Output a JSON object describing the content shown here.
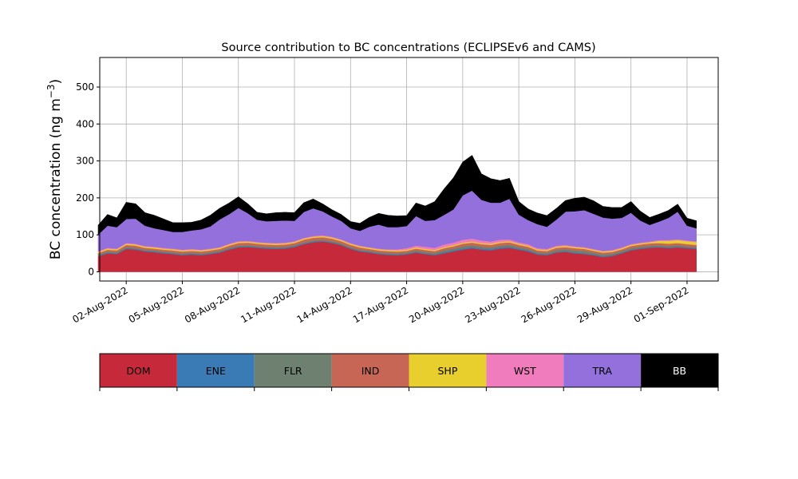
{
  "chart_data": {
    "type": "area",
    "stacked": true,
    "title": "Source contribution to BC concentrations (ECLIPSEv6 and CAMS)",
    "ylabel_text": "BC concentration (ng m",
    "ylabel_exp": "−3",
    "ylabel_close": ")",
    "xlabel": "",
    "ylim": [
      -25,
      580
    ],
    "yticks": [
      0,
      100,
      200,
      300,
      400,
      500
    ],
    "xlim": [
      "2022-07-31T14:00",
      "2022-09-02T16:00"
    ],
    "xticks": [
      {
        "date": "2022-08-02",
        "label": "02-Aug-2022"
      },
      {
        "date": "2022-08-05",
        "label": "05-Aug-2022"
      },
      {
        "date": "2022-08-08",
        "label": "08-Aug-2022"
      },
      {
        "date": "2022-08-11",
        "label": "11-Aug-2022"
      },
      {
        "date": "2022-08-14",
        "label": "14-Aug-2022"
      },
      {
        "date": "2022-08-17",
        "label": "17-Aug-2022"
      },
      {
        "date": "2022-08-20",
        "label": "20-Aug-2022"
      },
      {
        "date": "2022-08-23",
        "label": "23-Aug-2022"
      },
      {
        "date": "2022-08-26",
        "label": "26-Aug-2022"
      },
      {
        "date": "2022-08-29",
        "label": "29-Aug-2022"
      },
      {
        "date": "2022-09-01",
        "label": "01-Sep-2022"
      }
    ],
    "grid": true,
    "legend_placement": "bottom colorbar",
    "x": [
      "2022-07-31T12:00",
      "2022-08-01T00:00",
      "2022-08-01T12:00",
      "2022-08-02T00:00",
      "2022-08-02T12:00",
      "2022-08-03T00:00",
      "2022-08-03T12:00",
      "2022-08-04T00:00",
      "2022-08-04T12:00",
      "2022-08-05T00:00",
      "2022-08-05T12:00",
      "2022-08-06T00:00",
      "2022-08-06T12:00",
      "2022-08-07T00:00",
      "2022-08-07T12:00",
      "2022-08-08T00:00",
      "2022-08-08T12:00",
      "2022-08-09T00:00",
      "2022-08-09T12:00",
      "2022-08-10T00:00",
      "2022-08-10T12:00",
      "2022-08-11T00:00",
      "2022-08-11T12:00",
      "2022-08-12T00:00",
      "2022-08-12T12:00",
      "2022-08-13T00:00",
      "2022-08-13T12:00",
      "2022-08-14T00:00",
      "2022-08-14T12:00",
      "2022-08-15T00:00",
      "2022-08-15T12:00",
      "2022-08-16T00:00",
      "2022-08-16T12:00",
      "2022-08-17T00:00",
      "2022-08-17T12:00",
      "2022-08-18T00:00",
      "2022-08-18T12:00",
      "2022-08-19T00:00",
      "2022-08-19T12:00",
      "2022-08-20T00:00",
      "2022-08-20T12:00",
      "2022-08-21T00:00",
      "2022-08-21T12:00",
      "2022-08-22T00:00",
      "2022-08-22T12:00",
      "2022-08-23T00:00",
      "2022-08-23T12:00",
      "2022-08-24T00:00",
      "2022-08-24T12:00",
      "2022-08-25T00:00",
      "2022-08-25T12:00",
      "2022-08-26T00:00",
      "2022-08-26T12:00",
      "2022-08-27T00:00",
      "2022-08-27T12:00",
      "2022-08-28T00:00",
      "2022-08-28T12:00",
      "2022-08-29T00:00",
      "2022-08-29T12:00",
      "2022-08-30T00:00",
      "2022-08-30T12:00",
      "2022-08-31T00:00",
      "2022-08-31T12:00",
      "2022-09-01T00:00",
      "2022-09-01T12:00"
    ],
    "series": [
      {
        "name": "DOM",
        "color": "#c62a3a",
        "text_color": "#000000",
        "values": [
          42,
          50,
          48,
          62,
          60,
          55,
          53,
          50,
          48,
          45,
          47,
          45,
          48,
          52,
          60,
          66,
          67,
          65,
          63,
          62,
          63,
          67,
          75,
          80,
          82,
          78,
          72,
          62,
          55,
          52,
          48,
          46,
          45,
          47,
          52,
          48,
          45,
          50,
          55,
          60,
          64,
          60,
          58,
          63,
          65,
          60,
          55,
          47,
          45,
          52,
          54,
          50,
          48,
          45,
          40,
          43,
          50,
          58,
          62,
          65,
          66,
          64,
          66,
          64,
          62
        ]
      },
      {
        "name": "ENE",
        "color": "#3a7ab5",
        "text_color": "#000000",
        "values": [
          2,
          2,
          2,
          2,
          2,
          2,
          2,
          2,
          2,
          2,
          2,
          2,
          2,
          2,
          2,
          2,
          2,
          2,
          2,
          2,
          2,
          2,
          2,
          2,
          2,
          2,
          2,
          2,
          2,
          2,
          2,
          2,
          2,
          2,
          2,
          2,
          2,
          3,
          3,
          3,
          3,
          3,
          3,
          3,
          3,
          3,
          3,
          2,
          2,
          2,
          2,
          2,
          2,
          2,
          2,
          2,
          2,
          2,
          2,
          2,
          2,
          2,
          2,
          2,
          2
        ]
      },
      {
        "name": "FLR",
        "color": "#6e8170",
        "text_color": "#000000",
        "values": [
          3,
          3,
          3,
          3,
          3,
          3,
          3,
          3,
          3,
          3,
          3,
          3,
          3,
          3,
          3,
          3,
          3,
          3,
          3,
          3,
          3,
          3,
          3,
          3,
          3,
          3,
          3,
          3,
          3,
          3,
          3,
          3,
          3,
          3,
          4,
          4,
          4,
          5,
          5,
          6,
          5,
          5,
          5,
          5,
          5,
          4,
          4,
          4,
          4,
          5,
          5,
          6,
          6,
          5,
          5,
          4,
          4,
          4,
          4,
          4,
          4,
          4,
          4,
          3,
          3
        ]
      },
      {
        "name": "IND",
        "color": "#c86656",
        "text_color": "#000000",
        "values": [
          4,
          5,
          5,
          6,
          6,
          5,
          5,
          5,
          5,
          5,
          5,
          5,
          5,
          5,
          6,
          7,
          7,
          6,
          6,
          6,
          6,
          6,
          7,
          7,
          7,
          7,
          6,
          6,
          6,
          5,
          5,
          5,
          5,
          5,
          5,
          5,
          5,
          6,
          6,
          7,
          7,
          7,
          7,
          7,
          7,
          6,
          6,
          5,
          5,
          6,
          6,
          6,
          6,
          5,
          5,
          5,
          5,
          6,
          6,
          6,
          6,
          6,
          6,
          6,
          6
        ]
      },
      {
        "name": "SHP",
        "color": "#e8cf2e",
        "text_color": "#000000",
        "values": [
          3,
          3,
          3,
          3,
          3,
          3,
          3,
          3,
          3,
          3,
          3,
          3,
          3,
          3,
          3,
          3,
          3,
          3,
          3,
          3,
          3,
          3,
          3,
          3,
          3,
          3,
          3,
          3,
          3,
          3,
          3,
          3,
          3,
          3,
          3,
          3,
          3,
          3,
          3,
          3,
          3,
          3,
          3,
          3,
          3,
          3,
          3,
          3,
          3,
          3,
          3,
          3,
          3,
          3,
          3,
          3,
          3,
          3,
          3,
          3,
          6,
          8,
          8,
          8,
          8
        ]
      },
      {
        "name": "WST",
        "color": "#f07cbd",
        "text_color": "#000000",
        "values": [
          2,
          2,
          2,
          2,
          2,
          2,
          2,
          2,
          2,
          2,
          2,
          2,
          2,
          2,
          2,
          2,
          2,
          2,
          2,
          2,
          2,
          2,
          2,
          2,
          2,
          2,
          2,
          2,
          2,
          2,
          2,
          2,
          3,
          4,
          5,
          6,
          6,
          7,
          7,
          8,
          8,
          7,
          6,
          6,
          5,
          4,
          4,
          3,
          3,
          3,
          3,
          2,
          2,
          2,
          2,
          2,
          2,
          2,
          2,
          2,
          2,
          2,
          2,
          2,
          2
        ]
      },
      {
        "name": "TRA",
        "color": "#9370db",
        "text_color": "#000000",
        "values": [
          45,
          60,
          58,
          65,
          68,
          55,
          50,
          48,
          45,
          48,
          50,
          55,
          60,
          75,
          80,
          90,
          75,
          60,
          58,
          60,
          60,
          55,
          70,
          75,
          65,
          55,
          50,
          40,
          40,
          55,
          65,
          60,
          60,
          60,
          80,
          70,
          75,
          80,
          90,
          120,
          130,
          110,
          105,
          100,
          110,
          75,
          65,
          65,
          60,
          70,
          90,
          95,
          100,
          95,
          90,
          85,
          80,
          85,
          60,
          45,
          50,
          60,
          75,
          40,
          35
        ]
      },
      {
        "name": "BB",
        "color": "#000000",
        "text_color": "#ffffff",
        "values": [
          25,
          30,
          25,
          45,
          40,
          35,
          35,
          30,
          25,
          25,
          22,
          25,
          30,
          30,
          30,
          30,
          25,
          20,
          20,
          22,
          22,
          22,
          25,
          25,
          20,
          18,
          17,
          18,
          20,
          25,
          30,
          32,
          30,
          28,
          35,
          40,
          50,
          70,
          85,
          90,
          95,
          70,
          65,
          60,
          55,
          35,
          30,
          30,
          30,
          30,
          30,
          35,
          35,
          35,
          30,
          30,
          28,
          30,
          25,
          20,
          20,
          20,
          20,
          20,
          20
        ]
      }
    ]
  }
}
